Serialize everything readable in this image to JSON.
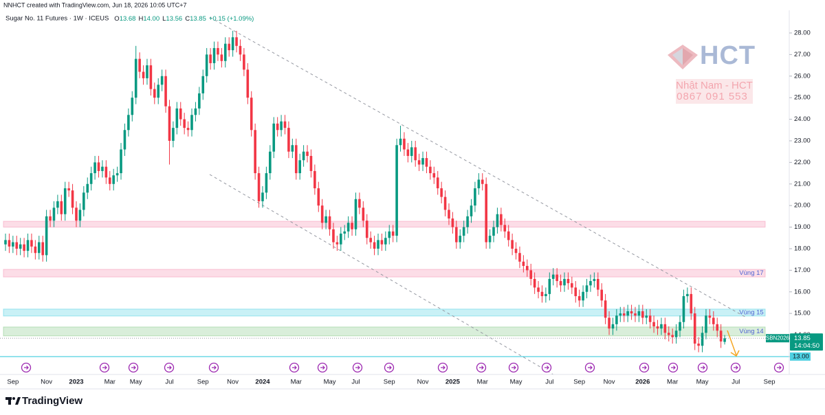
{
  "header": "NNHCT created with TradingView.com, Jun 18, 2026 10:05 UTC+7",
  "footer": "TradingView",
  "watermark": {
    "logo": "HCT",
    "name": "Nhật Nam - HCT",
    "phone": "0867 091 553"
  },
  "chart_data": {
    "type": "candlestick",
    "title": "Sugar No. 11 Futures · 1W · ICEUS",
    "ohlc": [
      {
        "key": "O",
        "value": "13.68"
      },
      {
        "key": "H",
        "value": "14.00"
      },
      {
        "key": "L",
        "value": "13.56"
      },
      {
        "key": "C",
        "value": "13.85"
      }
    ],
    "change": "+0.15 (+1.09%)",
    "up_color": "#089981",
    "down_color": "#f23645",
    "grid": false,
    "ylim": [
      12.17,
      29.05
    ],
    "yticks": [
      {
        "value": 13,
        "label": "13.00"
      },
      {
        "value": 14,
        "label": "14.00"
      },
      {
        "value": 15,
        "label": "15.00"
      },
      {
        "value": 16,
        "label": "16.00"
      },
      {
        "value": 17,
        "label": "17.00"
      },
      {
        "value": 18,
        "label": "18.00"
      },
      {
        "value": 19,
        "label": "19.00"
      },
      {
        "value": 20,
        "label": "20.00"
      },
      {
        "value": 21,
        "label": "21.00"
      },
      {
        "value": 22,
        "label": "22.00"
      },
      {
        "value": 23,
        "label": "23.00"
      },
      {
        "value": 24,
        "label": "24.00"
      },
      {
        "value": 25,
        "label": "25.00"
      },
      {
        "value": 26,
        "label": "26.00"
      },
      {
        "value": 27,
        "label": "27.00"
      },
      {
        "value": 28,
        "label": "28.00"
      }
    ],
    "categories": [
      null,
      null,
      "Sep",
      null,
      null,
      null,
      null,
      null,
      null,
      null,
      null,
      "Nov",
      null,
      null,
      null,
      null,
      null,
      null,
      null,
      "2023",
      null,
      null,
      null,
      null,
      null,
      null,
      null,
      null,
      "Mar",
      null,
      null,
      null,
      null,
      null,
      null,
      "May",
      null,
      null,
      null,
      null,
      null,
      null,
      null,
      null,
      "Jul",
      null,
      null,
      null,
      null,
      null,
      null,
      null,
      null,
      "Sep",
      null,
      null,
      null,
      null,
      null,
      null,
      null,
      "Nov",
      null,
      null,
      null,
      null,
      null,
      null,
      null,
      "2024",
      null,
      null,
      null,
      null,
      null,
      null,
      null,
      null,
      "Mar",
      null,
      null,
      null,
      null,
      null,
      null,
      null,
      null,
      "May",
      null,
      null,
      null,
      null,
      null,
      null,
      "Jul",
      null,
      null,
      null,
      null,
      null,
      null,
      null,
      null,
      "Sep",
      null,
      null,
      null,
      null,
      null,
      null,
      null,
      null,
      "Nov",
      null,
      null,
      null,
      null,
      null,
      null,
      null,
      "2025",
      null,
      null,
      null,
      null,
      null,
      null,
      null,
      "Mar",
      null,
      null,
      null,
      null,
      null,
      null,
      null,
      null,
      "May",
      null,
      null,
      null,
      null,
      null,
      null,
      null,
      null,
      "Jul",
      null,
      null,
      null,
      null,
      null,
      null,
      null,
      "Sep",
      null,
      null,
      null,
      null,
      null,
      null,
      null,
      "Nov",
      null,
      null,
      null,
      null,
      null,
      null,
      null,
      null,
      "2026",
      null,
      null,
      null,
      null,
      null,
      null,
      null,
      "Mar",
      null,
      null,
      null,
      null,
      null,
      null,
      null,
      "May",
      null,
      null,
      null,
      null,
      null,
      null,
      null,
      null,
      "Jul",
      null,
      null,
      null,
      null,
      null,
      null,
      null,
      null,
      "Sep"
    ],
    "open": [
      18.2,
      18.4,
      18.1,
      18.3,
      18.0,
      18.2,
      17.9,
      18.4,
      18.1,
      17.8,
      18.3,
      17.7,
      19.5,
      19.3,
      19.9,
      20.2,
      19.6,
      20.8,
      20.7,
      19.9,
      19.3,
      19.8,
      20.6,
      21.0,
      21.5,
      22.0,
      21.6,
      21.8,
      21.3,
      21.0,
      21.4,
      21.5,
      22.6,
      23.5,
      24.2,
      25.0,
      26.8,
      26.2,
      25.9,
      26.5,
      25.4,
      25.0,
      25.6,
      26.0,
      24.6,
      23.0,
      23.6,
      24.5,
      24.0,
      23.6,
      23.5,
      24.2,
      24.5,
      25.2,
      26.0,
      27.0,
      26.6,
      27.3,
      27.0,
      26.7,
      27.5,
      27.2,
      27.8,
      27.4,
      27.0,
      26.3,
      25.0,
      23.5,
      21.5,
      20.2,
      20.6,
      21.5,
      22.5,
      23.8,
      23.5,
      23.9,
      23.6,
      22.5,
      22.8,
      21.5,
      22.1,
      22.5,
      22.3,
      21.6,
      20.8,
      20.0,
      19.2,
      19.5,
      18.9,
      18.3,
      18.2,
      18.7,
      18.8,
      19.2,
      18.9,
      20.3,
      19.9,
      19.3,
      18.5,
      18.3,
      18.0,
      18.4,
      18.2,
      18.5,
      18.8,
      18.6,
      22.8,
      23.1,
      22.6,
      22.3,
      22.7,
      22.1,
      21.9,
      22.2,
      21.8,
      21.5,
      21.3,
      20.8,
      20.4,
      19.8,
      19.4,
      19.0,
      18.3,
      18.6,
      19.0,
      19.5,
      20.0,
      20.8,
      21.2,
      21.0,
      18.3,
      18.6,
      19.0,
      19.6,
      19.1,
      18.8,
      18.4,
      18.0,
      17.8,
      17.4,
      17.2,
      17.0,
      16.6,
      16.2,
      16.0,
      15.8,
      15.9,
      16.6,
      16.8,
      16.5,
      16.3,
      16.6,
      16.4,
      16.2,
      15.8,
      15.6,
      16.0,
      16.3,
      16.5,
      16.6,
      16.1,
      15.6,
      14.8,
      14.3,
      14.5,
      14.9,
      15.0,
      14.9,
      15.1,
      15.0,
      14.9,
      15.1,
      14.8,
      14.9,
      14.6,
      14.4,
      14.3,
      14.5,
      14.1,
      14.0,
      13.9,
      14.2,
      14.6,
      15.8,
      15.9,
      15.0,
      13.6,
      13.5,
      14.1,
      14.9,
      14.8,
      14.5,
      14.2,
      13.68,
      null,
      null,
      null,
      null,
      null,
      null,
      null,
      null,
      null,
      null,
      null,
      null
    ],
    "high": [
      18.7,
      18.7,
      18.6,
      18.6,
      18.5,
      18.5,
      18.7,
      18.7,
      18.4,
      18.6,
      18.6,
      19.8,
      19.8,
      20.2,
      20.5,
      20.5,
      21.1,
      21.1,
      21.0,
      20.2,
      20.1,
      20.9,
      21.3,
      21.8,
      22.3,
      22.3,
      22.1,
      22.1,
      21.6,
      21.7,
      21.8,
      22.9,
      23.8,
      24.5,
      25.3,
      27.4,
      27.1,
      26.5,
      26.8,
      26.8,
      25.7,
      25.9,
      26.3,
      26.3,
      24.9,
      23.9,
      24.8,
      24.8,
      24.3,
      23.9,
      24.5,
      24.8,
      25.5,
      26.3,
      27.3,
      27.3,
      27.6,
      27.6,
      27.3,
      27.8,
      27.8,
      28.1,
      28.1,
      27.7,
      27.3,
      26.6,
      25.3,
      23.8,
      21.8,
      20.9,
      21.8,
      22.8,
      24.1,
      24.1,
      24.2,
      24.2,
      23.9,
      23.1,
      23.1,
      22.4,
      22.8,
      22.8,
      22.6,
      21.9,
      21.1,
      20.3,
      19.8,
      19.8,
      19.2,
      18.6,
      19.0,
      19.1,
      19.5,
      19.5,
      20.6,
      20.6,
      20.2,
      19.6,
      18.8,
      18.6,
      18.7,
      18.7,
      18.8,
      19.1,
      19.1,
      23.1,
      23.7,
      23.4,
      22.9,
      23.0,
      23.0,
      22.4,
      22.5,
      22.5,
      22.1,
      21.8,
      21.6,
      21.1,
      20.7,
      20.1,
      19.7,
      19.3,
      18.9,
      19.3,
      19.8,
      20.3,
      21.1,
      21.5,
      21.5,
      21.3,
      18.9,
      19.3,
      19.9,
      19.9,
      19.4,
      19.1,
      18.7,
      18.3,
      18.1,
      17.7,
      17.5,
      17.3,
      16.9,
      16.5,
      16.3,
      16.2,
      16.9,
      17.1,
      17.1,
      16.8,
      16.9,
      16.9,
      16.7,
      16.5,
      16.1,
      16.3,
      16.6,
      16.8,
      16.9,
      16.9,
      16.4,
      15.9,
      15.1,
      14.8,
      15.2,
      15.3,
      15.3,
      15.4,
      15.4,
      15.3,
      15.4,
      15.4,
      15.2,
      15.2,
      14.9,
      14.7,
      14.8,
      14.8,
      14.4,
      14.3,
      14.5,
      14.9,
      16.1,
      16.2,
      16.2,
      15.3,
      13.9,
      14.4,
      15.2,
      15.2,
      15.1,
      14.8,
      14.5,
      14.0,
      null,
      null,
      null,
      null,
      null,
      null,
      null,
      null,
      null,
      null,
      null,
      null
    ],
    "low": [
      17.9,
      17.8,
      17.8,
      17.7,
      17.7,
      17.6,
      17.6,
      17.8,
      17.5,
      17.5,
      17.4,
      17.4,
      19.0,
      19.0,
      19.6,
      19.3,
      19.3,
      20.4,
      19.6,
      19.0,
      19.0,
      19.5,
      20.3,
      20.7,
      21.2,
      21.3,
      21.3,
      21.0,
      20.7,
      20.7,
      21.1,
      21.2,
      22.3,
      23.2,
      23.9,
      24.7,
      25.9,
      25.6,
      25.6,
      25.1,
      24.7,
      24.7,
      25.3,
      24.3,
      21.9,
      22.7,
      23.3,
      23.7,
      23.3,
      23.2,
      23.2,
      23.9,
      24.2,
      24.9,
      25.7,
      26.3,
      26.3,
      26.7,
      26.4,
      26.4,
      26.9,
      26.9,
      27.1,
      26.7,
      26.0,
      24.7,
      23.2,
      21.2,
      19.9,
      19.9,
      20.3,
      21.2,
      22.2,
      23.2,
      23.2,
      23.3,
      22.2,
      22.2,
      21.2,
      21.2,
      21.8,
      22.0,
      21.3,
      20.5,
      19.7,
      18.9,
      18.9,
      18.6,
      18.0,
      17.9,
      17.9,
      18.4,
      18.5,
      18.6,
      18.6,
      19.6,
      19.0,
      18.2,
      18.0,
      17.7,
      17.7,
      17.9,
      17.9,
      18.2,
      18.3,
      18.3,
      22.5,
      22.3,
      22.0,
      22.0,
      21.8,
      21.6,
      21.6,
      21.5,
      21.2,
      21.0,
      20.5,
      20.1,
      19.5,
      19.1,
      18.7,
      18.0,
      18.0,
      18.3,
      18.7,
      19.2,
      19.7,
      20.5,
      20.7,
      18.0,
      18.0,
      18.3,
      18.7,
      18.8,
      18.5,
      18.1,
      17.7,
      17.5,
      17.1,
      16.9,
      16.7,
      16.3,
      15.9,
      15.7,
      15.5,
      15.5,
      15.6,
      16.3,
      16.2,
      16.0,
      16.0,
      16.1,
      15.9,
      15.5,
      15.3,
      15.3,
      15.7,
      16.0,
      16.2,
      15.8,
      15.3,
      14.5,
      14.0,
      14.0,
      14.2,
      14.6,
      14.6,
      14.6,
      14.7,
      14.6,
      14.6,
      14.5,
      14.5,
      14.3,
      14.1,
      14.0,
      14.0,
      13.8,
      13.7,
      13.6,
      13.6,
      13.9,
      14.3,
      15.5,
      14.7,
      13.3,
      13.2,
      13.2,
      13.8,
      14.5,
      14.2,
      13.9,
      13.4,
      13.56,
      null,
      null,
      null,
      null,
      null,
      null,
      null,
      null,
      null,
      null,
      null,
      null
    ],
    "close": [
      18.4,
      18.1,
      18.3,
      18.0,
      18.2,
      17.9,
      18.4,
      18.1,
      17.8,
      18.3,
      17.7,
      19.5,
      19.3,
      19.9,
      20.2,
      19.6,
      20.8,
      20.7,
      19.9,
      19.3,
      19.8,
      20.6,
      21.0,
      21.5,
      22.0,
      21.6,
      21.8,
      21.3,
      21.0,
      21.4,
      21.5,
      22.6,
      23.5,
      24.2,
      25.0,
      26.8,
      26.2,
      25.9,
      26.5,
      25.4,
      25.0,
      25.6,
      26.0,
      24.6,
      23.0,
      23.6,
      24.5,
      24.0,
      23.6,
      23.5,
      24.2,
      24.5,
      25.2,
      26.0,
      27.0,
      26.6,
      27.3,
      27.0,
      26.7,
      27.5,
      27.2,
      27.8,
      27.4,
      27.0,
      26.3,
      25.0,
      23.5,
      21.5,
      20.2,
      20.6,
      21.5,
      22.5,
      23.8,
      23.5,
      23.9,
      23.6,
      22.5,
      22.8,
      21.5,
      22.1,
      22.5,
      22.3,
      21.6,
      20.8,
      20.0,
      19.2,
      19.5,
      18.9,
      18.3,
      18.2,
      18.7,
      18.8,
      19.2,
      18.9,
      20.3,
      19.9,
      19.3,
      18.5,
      18.3,
      18.0,
      18.4,
      18.2,
      18.5,
      18.8,
      18.6,
      22.8,
      23.1,
      22.6,
      22.3,
      22.7,
      22.1,
      21.9,
      22.2,
      21.8,
      21.5,
      21.3,
      20.8,
      20.4,
      19.8,
      19.4,
      19.0,
      18.3,
      18.6,
      19.0,
      19.5,
      20.0,
      20.8,
      21.2,
      21.0,
      18.3,
      18.6,
      19.0,
      19.6,
      19.1,
      18.8,
      18.4,
      18.0,
      17.8,
      17.4,
      17.2,
      17.0,
      16.6,
      16.2,
      16.0,
      15.8,
      15.9,
      16.6,
      16.8,
      16.5,
      16.3,
      16.6,
      16.4,
      16.2,
      15.8,
      15.6,
      16.0,
      16.3,
      16.5,
      16.6,
      16.1,
      15.6,
      14.8,
      14.3,
      14.5,
      14.9,
      15.0,
      14.9,
      15.1,
      15.0,
      14.9,
      15.1,
      14.8,
      14.9,
      14.6,
      14.4,
      14.3,
      14.5,
      14.1,
      14.0,
      13.9,
      14.2,
      14.6,
      15.8,
      15.9,
      15.0,
      13.6,
      13.5,
      14.1,
      14.9,
      14.8,
      14.5,
      14.2,
      13.7,
      13.85,
      null,
      null,
      null,
      null,
      null,
      null,
      null,
      null,
      null,
      null,
      null,
      null
    ],
    "zones": [
      {
        "low": 19.0,
        "high": 19.27,
        "color": "#f48fb1"
      },
      {
        "label": "Vùng 17",
        "low": 16.69,
        "high": 17.04,
        "color": "#f48fb1"
      },
      {
        "label": "Vùng 15",
        "low": 14.88,
        "high": 15.2,
        "color": "#4dd0e1"
      },
      {
        "label": "Vùng 14",
        "low": 13.96,
        "high": 14.37,
        "color": "#81c784"
      }
    ],
    "trendlines": [
      {
        "points": [
          [
            54.8,
            28.73
          ],
          [
            198.7,
            14.82
          ]
        ]
      },
      {
        "points": [
          [
            54.8,
            21.44
          ],
          [
            147,
            12.17
          ]
        ]
      }
    ],
    "price_tag": {
      "symbol": "SBN2026",
      "value_label": "13.85",
      "countdown": "14:04:50"
    },
    "level": {
      "value": 13,
      "label": "13.00"
    }
  }
}
